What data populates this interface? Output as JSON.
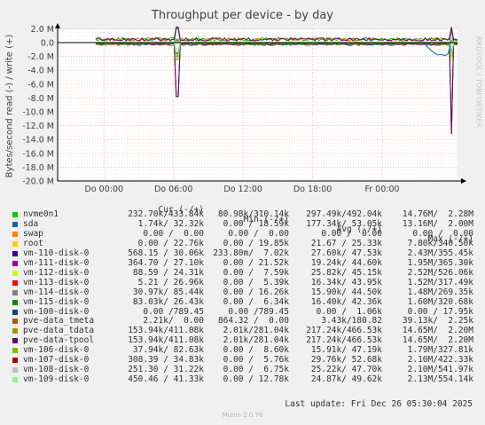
{
  "chart_data": {
    "type": "line",
    "title": "Throughput per device - by day",
    "ylabel": "Bytes/second read (-) / write (+)",
    "yticks": [
      "2.0 M",
      "0.0",
      "-2.0 M",
      "-4.0 M",
      "-6.0 M",
      "-8.0 M",
      "-10.0 M",
      "-12.0 M",
      "-14.0 M",
      "-16.0 M",
      "-18.0 M",
      "-20.0 M"
    ],
    "ylim": [
      -20000000,
      3000000
    ],
    "xticks": [
      "Do 00:00",
      "Do 06:00",
      "Do 12:00",
      "Do 18:00",
      "Fr 00:00"
    ],
    "xlim_hours": [
      -4,
      30.5
    ],
    "grid": true,
    "events": [
      {
        "name": "Do 06:00 spike",
        "x_hours": 6.3,
        "read": -7800000,
        "write": 2300000
      },
      {
        "name": "Fr 06:00 spike",
        "x_hours": 30.0,
        "read": -13200000,
        "write": 2300000
      },
      {
        "name": "sda read Fr",
        "x_hours": 28.5,
        "read": -1800000,
        "write": 0
      }
    ],
    "legend_header": {
      "cur": "Cur (-/+)",
      "min": "Min (-/+)",
      "avg": "Avg (-/+)",
      "max": "Max (-/+)"
    },
    "series": [
      {
        "name": "nvme0n1",
        "color": "#00cc00",
        "cur": "232.70k/433.84k",
        "min": "80.98k/310.14k",
        "avg": "297.49k/492.04k",
        "max": "14.76M/  2.28M"
      },
      {
        "name": "sda",
        "color": "#0066b3",
        "cur": "1.74k/ 32.32k",
        "min": "0.00 / 18.59k",
        "avg": "177.34k/ 53.05k",
        "max": "13.16M/  2.00M"
      },
      {
        "name": "swap",
        "color": "#ff8000",
        "cur": "0.00 /  0.00",
        "min": "0.00 /  0.00",
        "avg": "0.00 /  0.00",
        "max": "0.00 /  0.00"
      },
      {
        "name": "root",
        "color": "#ffcc00",
        "cur": "0.00 / 22.76k",
        "min": "0.00 / 19.85k",
        "avg": "21.67 / 25.33k",
        "max": "7.80k/340.50k"
      },
      {
        "name": "vm-110-disk-0",
        "color": "#330099",
        "cur": "568.15 / 30.06k",
        "min": "233.80m/  7.02k",
        "avg": "27.60k/ 47.53k",
        "max": "2.43M/355.45k"
      },
      {
        "name": "vm-111-disk-0",
        "color": "#990099",
        "cur": "364.70 / 27.10k",
        "min": "0.00 / 21.52k",
        "avg": "19.24k/ 44.60k",
        "max": "1.95M/365.30k"
      },
      {
        "name": "vm-112-disk-0",
        "color": "#ccff00",
        "cur": "88.59 / 24.31k",
        "min": "0.00 /  7.59k",
        "avg": "25.82k/ 45.15k",
        "max": "2.52M/526.06k"
      },
      {
        "name": "vm-113-disk-0",
        "color": "#ff0000",
        "cur": "5.21 / 26.96k",
        "min": "0.00 /  5.39k",
        "avg": "16.34k/ 43.95k",
        "max": "1.52M/317.49k"
      },
      {
        "name": "vm-114-disk-0",
        "color": "#808080",
        "cur": "30.97k/ 85.44k",
        "min": "0.00 / 16.26k",
        "avg": "15.90k/ 44.50k",
        "max": "1.48M/269.35k"
      },
      {
        "name": "vm-115-disk-0",
        "color": "#008f00",
        "cur": "83.03k/ 26.43k",
        "min": "0.00 /  6.34k",
        "avg": "16.40k/ 42.36k",
        "max": "1.60M/320.68k"
      },
      {
        "name": "vm-100-disk-0",
        "color": "#00487d",
        "cur": "0.00 /789.45",
        "min": "0.00 /789.45",
        "avg": "0.00 /  1.06k",
        "max": "0.00 / 17.95k"
      },
      {
        "name": "pve-data_tmeta",
        "color": "#b35a00",
        "cur": "2.21k/  0.00",
        "min": "864.32 /  0.00",
        "avg": "3.43k/180.82",
        "max": "39.13k/  2.25k"
      },
      {
        "name": "pve-data_tdata",
        "color": "#b38f00",
        "cur": "153.94k/411.08k",
        "min": "2.01k/281.04k",
        "avg": "217.24k/466.53k",
        "max": "14.65M/  2.20M"
      },
      {
        "name": "pve-data-tpool",
        "color": "#6b006b",
        "cur": "153.94k/411.08k",
        "min": "2.01k/281.04k",
        "avg": "217.24k/466.53k",
        "max": "14.65M/  2.20M"
      },
      {
        "name": "vm-106-disk-0",
        "color": "#8fb300",
        "cur": "37.94k/ 82.63k",
        "min": "0.00 /  8.60k",
        "avg": "15.91k/ 47.19k",
        "max": "1.79M/327.81k"
      },
      {
        "name": "vm-107-disk-0",
        "color": "#b30000",
        "cur": "308.39 / 34.83k",
        "min": "0.00 /  5.76k",
        "avg": "29.76k/ 52.68k",
        "max": "2.10M/422.33k"
      },
      {
        "name": "vm-108-disk-0",
        "color": "#bebebe",
        "cur": "251.30 / 31.22k",
        "min": "0.00 /  6.75k",
        "avg": "25.22k/ 47.70k",
        "max": "2.10M/541.97k"
      },
      {
        "name": "vm-109-disk-0",
        "color": "#80ff80",
        "cur": "450.46 / 41.33k",
        "min": "0.00 / 12.78k",
        "avg": "24.87k/ 49.62k",
        "max": "2.13M/554.14k"
      }
    ]
  },
  "footer": "Last update: Fri Dec 26 05:30:04 2025",
  "vendor": "RRDTOOL / TOBI OETIKER",
  "version": "Munin 2.0.76"
}
